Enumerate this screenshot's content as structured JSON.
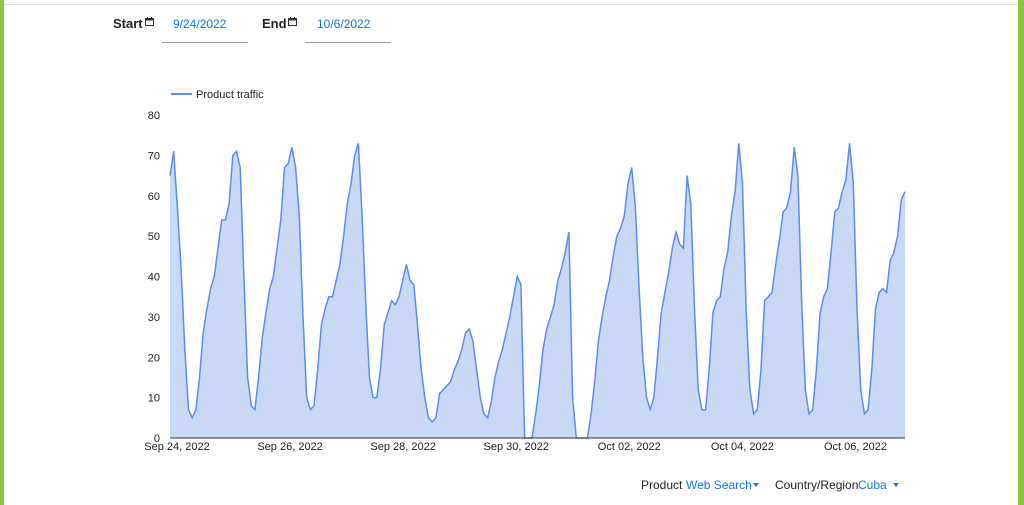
{
  "filters": {
    "start_label": "Start",
    "start_value": "9/24/2022",
    "end_label": "End",
    "end_value": "10/6/2022",
    "calendar_icon": "calendar-icon"
  },
  "selectors": {
    "product_label": "Product",
    "product_value": "Web Search",
    "region_label": "Country/Region",
    "region_value": "Cuba",
    "accent_color": "#1a73e8"
  },
  "chart_data": {
    "type": "area",
    "series": [
      {
        "name": "Product traffic",
        "color": "#5b8def",
        "fill": "#c8d8f5",
        "points": [
          [
            0,
            65
          ],
          [
            1,
            71
          ],
          [
            2,
            57
          ],
          [
            3,
            42
          ],
          [
            4,
            22
          ],
          [
            5,
            7
          ],
          [
            6,
            5
          ],
          [
            7,
            7
          ],
          [
            8,
            15
          ],
          [
            9,
            26
          ],
          [
            10,
            32
          ],
          [
            11,
            37
          ],
          [
            12,
            40
          ],
          [
            13,
            47
          ],
          [
            14,
            54
          ],
          [
            15,
            54
          ],
          [
            16,
            58
          ],
          [
            17,
            70
          ],
          [
            18,
            71
          ],
          [
            19,
            67
          ],
          [
            20,
            40
          ],
          [
            21,
            15
          ],
          [
            22,
            8
          ],
          [
            23,
            7
          ],
          [
            24,
            15
          ],
          [
            25,
            25
          ],
          [
            26,
            31
          ],
          [
            27,
            37
          ],
          [
            28,
            40
          ],
          [
            29,
            47
          ],
          [
            30,
            54
          ],
          [
            31,
            67
          ],
          [
            32,
            68
          ],
          [
            33,
            72
          ],
          [
            34,
            67
          ],
          [
            35,
            55
          ],
          [
            36,
            30
          ],
          [
            37,
            10
          ],
          [
            38,
            7
          ],
          [
            39,
            8
          ],
          [
            40,
            17
          ],
          [
            41,
            28
          ],
          [
            42,
            32
          ],
          [
            43,
            35
          ],
          [
            44,
            35
          ],
          [
            45,
            39
          ],
          [
            46,
            43
          ],
          [
            47,
            50
          ],
          [
            48,
            58
          ],
          [
            49,
            63
          ],
          [
            50,
            70
          ],
          [
            51,
            73
          ],
          [
            52,
            55
          ],
          [
            53,
            33
          ],
          [
            54,
            15
          ],
          [
            55,
            10
          ],
          [
            56,
            10
          ],
          [
            57,
            17
          ],
          [
            58,
            28
          ],
          [
            59,
            31
          ],
          [
            60,
            34
          ],
          [
            61,
            33
          ],
          [
            62,
            35
          ],
          [
            63,
            39
          ],
          [
            64,
            43
          ],
          [
            65,
            39
          ],
          [
            66,
            38
          ],
          [
            67,
            28
          ],
          [
            68,
            17
          ],
          [
            69,
            10
          ],
          [
            70,
            5
          ],
          [
            71,
            4
          ],
          [
            72,
            5
          ],
          [
            73,
            11
          ],
          [
            74,
            12
          ],
          [
            75,
            13
          ],
          [
            76,
            14
          ],
          [
            77,
            17
          ],
          [
            78,
            19
          ],
          [
            79,
            22
          ],
          [
            80,
            26
          ],
          [
            81,
            27
          ],
          [
            82,
            24
          ],
          [
            83,
            17
          ],
          [
            84,
            10
          ],
          [
            85,
            6
          ],
          [
            86,
            5
          ],
          [
            87,
            9
          ],
          [
            88,
            15
          ],
          [
            89,
            19
          ],
          [
            90,
            22
          ],
          [
            91,
            26
          ],
          [
            92,
            30
          ],
          [
            93,
            35
          ],
          [
            94,
            40
          ],
          [
            95,
            38
          ],
          [
            96,
            0
          ],
          [
            97,
            0
          ],
          [
            98,
            0
          ],
          [
            99,
            6
          ],
          [
            100,
            13
          ],
          [
            101,
            22
          ],
          [
            102,
            27
          ],
          [
            103,
            30
          ],
          [
            104,
            33
          ],
          [
            105,
            39
          ],
          [
            106,
            42
          ],
          [
            107,
            46
          ],
          [
            108,
            51
          ],
          [
            109,
            10
          ],
          [
            110,
            0
          ],
          [
            111,
            0
          ],
          [
            112,
            0
          ],
          [
            113,
            0
          ],
          [
            114,
            6
          ],
          [
            115,
            14
          ],
          [
            116,
            24
          ],
          [
            117,
            30
          ],
          [
            118,
            35
          ],
          [
            119,
            39
          ],
          [
            120,
            45
          ],
          [
            121,
            50
          ],
          [
            122,
            52
          ],
          [
            123,
            55
          ],
          [
            124,
            63
          ],
          [
            125,
            67
          ],
          [
            126,
            57
          ],
          [
            127,
            37
          ],
          [
            128,
            20
          ],
          [
            129,
            10
          ],
          [
            130,
            7
          ],
          [
            131,
            10
          ],
          [
            132,
            20
          ],
          [
            133,
            31
          ],
          [
            134,
            36
          ],
          [
            135,
            41
          ],
          [
            136,
            47
          ],
          [
            137,
            51
          ],
          [
            138,
            48
          ],
          [
            139,
            47
          ],
          [
            140,
            65
          ],
          [
            141,
            58
          ],
          [
            142,
            32
          ],
          [
            143,
            12
          ],
          [
            144,
            7
          ],
          [
            145,
            7
          ],
          [
            146,
            17
          ],
          [
            147,
            31
          ],
          [
            148,
            34
          ],
          [
            149,
            35
          ],
          [
            150,
            42
          ],
          [
            151,
            46
          ],
          [
            152,
            55
          ],
          [
            153,
            61
          ],
          [
            154,
            73
          ],
          [
            155,
            63
          ],
          [
            156,
            31
          ],
          [
            157,
            12
          ],
          [
            158,
            6
          ],
          [
            159,
            7
          ],
          [
            160,
            17
          ],
          [
            161,
            34
          ],
          [
            162,
            35
          ],
          [
            163,
            36
          ],
          [
            164,
            43
          ],
          [
            165,
            49
          ],
          [
            166,
            56
          ],
          [
            167,
            57
          ],
          [
            168,
            61
          ],
          [
            169,
            72
          ],
          [
            170,
            65
          ],
          [
            171,
            34
          ],
          [
            172,
            12
          ],
          [
            173,
            6
          ],
          [
            174,
            7
          ],
          [
            175,
            17
          ],
          [
            176,
            31
          ],
          [
            177,
            35
          ],
          [
            178,
            37
          ],
          [
            179,
            46
          ],
          [
            180,
            56
          ],
          [
            181,
            57
          ],
          [
            182,
            61
          ],
          [
            183,
            64
          ],
          [
            184,
            73
          ],
          [
            185,
            63
          ],
          [
            186,
            32
          ],
          [
            187,
            12
          ],
          [
            188,
            6
          ],
          [
            189,
            7
          ],
          [
            190,
            17
          ],
          [
            191,
            32
          ],
          [
            192,
            36
          ],
          [
            193,
            37
          ],
          [
            194,
            36
          ],
          [
            195,
            44
          ],
          [
            196,
            46
          ],
          [
            197,
            50
          ],
          [
            198,
            59
          ],
          [
            199,
            61
          ]
        ]
      }
    ],
    "x_ticks": [
      "Sep 24, 2022",
      "Sep 26, 2022",
      "Sep 28, 2022",
      "Sep 30, 2022",
      "Oct 02, 2022",
      "Oct 04, 2022",
      "Oct 06, 2022"
    ],
    "y_ticks": [
      0,
      10,
      20,
      30,
      40,
      50,
      60,
      70,
      80
    ],
    "ylim": [
      0,
      80
    ],
    "legend_position": "top-left",
    "grid": false
  }
}
